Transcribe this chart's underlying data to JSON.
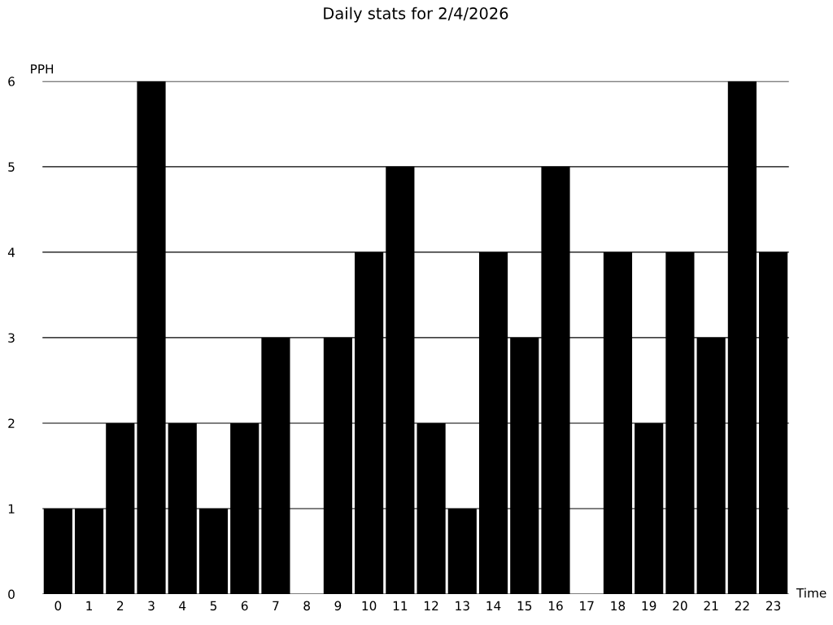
{
  "chart_data": {
    "type": "bar",
    "title": "Daily stats for 2/4/2026",
    "xlabel": "Time",
    "ylabel": "PPH",
    "categories": [
      "0",
      "1",
      "2",
      "3",
      "4",
      "5",
      "6",
      "7",
      "8",
      "9",
      "10",
      "11",
      "12",
      "13",
      "14",
      "15",
      "16",
      "17",
      "18",
      "19",
      "20",
      "21",
      "22",
      "23"
    ],
    "values": [
      1,
      1,
      2,
      6,
      2,
      1,
      2,
      3,
      0,
      3,
      4,
      5,
      2,
      1,
      4,
      3,
      5,
      0,
      4,
      2,
      4,
      3,
      6,
      4
    ],
    "color": "#000000",
    "ylim": [
      0,
      6
    ],
    "yticks": [
      0,
      1,
      2,
      3,
      4,
      5,
      6
    ],
    "grid": "y",
    "legend": false
  }
}
